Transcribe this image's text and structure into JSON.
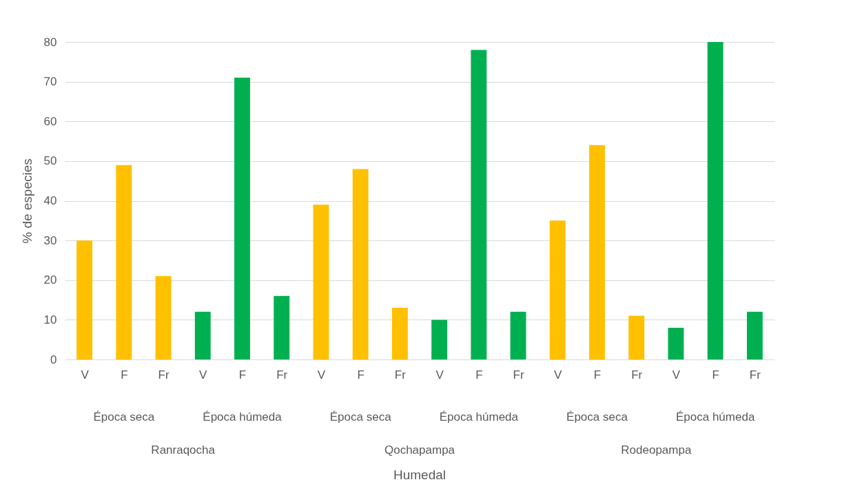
{
  "chart_data": {
    "type": "bar",
    "ylabel": "% de especies",
    "categories": [
      "V",
      "F",
      "Fr",
      "V",
      "F",
      "Fr",
      "V",
      "F",
      "Fr",
      "V",
      "F",
      "Fr",
      "V",
      "F",
      "Fr",
      "V",
      "F",
      "Fr"
    ],
    "values": [
      30,
      49,
      21,
      12,
      71,
      16,
      39,
      48,
      13,
      10,
      78,
      12,
      35,
      54,
      11,
      8,
      80,
      12
    ],
    "colors": [
      "#ffc000",
      "#ffc000",
      "#ffc000",
      "#00b050",
      "#00b050",
      "#00b050",
      "#ffc000",
      "#ffc000",
      "#ffc000",
      "#00b050",
      "#00b050",
      "#00b050",
      "#ffc000",
      "#ffc000",
      "#ffc000",
      "#00b050",
      "#00b050",
      "#00b050"
    ],
    "annotations": [
      "Época seca",
      "Época húmeda",
      "Época seca",
      "Época húmeda",
      "Época seca",
      "Época húmeda",
      "Ranraqocha",
      "Qochapampa",
      "Rodeopampa",
      "Humedal"
    ],
    "ylim": [
      0,
      80
    ],
    "yticks": [
      0,
      10,
      20,
      30,
      40,
      50,
      60,
      70,
      80
    ],
    "grid": "y"
  }
}
